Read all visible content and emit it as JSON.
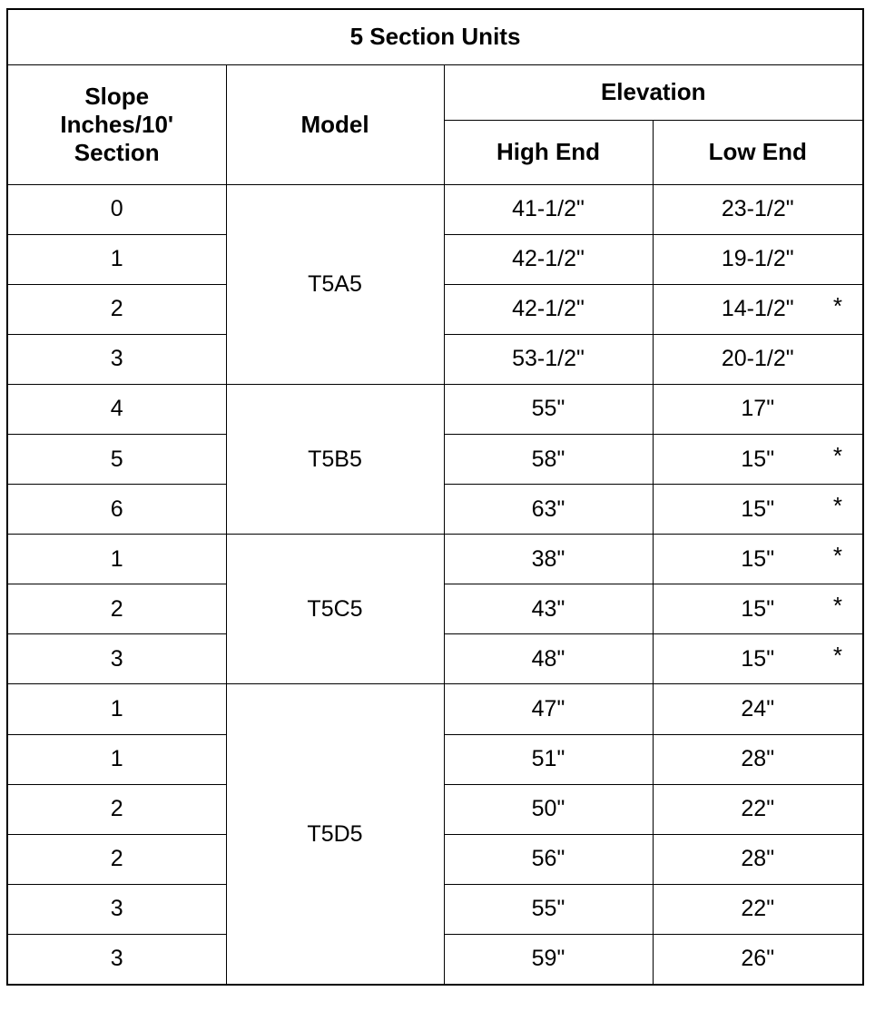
{
  "title": "5 Section Units",
  "headers": {
    "slope": "Slope Inches/10' Section",
    "slope_lines": [
      "Slope",
      "Inches/10'",
      "Section"
    ],
    "model": "Model",
    "elevation": "Elevation",
    "high_end": "High End",
    "low_end": "Low End"
  },
  "groups": [
    {
      "model": "T5A5",
      "rows": [
        {
          "slope": "0",
          "high": "41-1/2\"",
          "low": "23-1/2\"",
          "note": ""
        },
        {
          "slope": "1",
          "high": "42-1/2\"",
          "low": "19-1/2\"",
          "note": ""
        },
        {
          "slope": "2",
          "high": "42-1/2\"",
          "low": "14-1/2\"",
          "note": "*"
        },
        {
          "slope": "3",
          "high": "53-1/2\"",
          "low": "20-1/2\"",
          "note": ""
        }
      ]
    },
    {
      "model": "T5B5",
      "rows": [
        {
          "slope": "4",
          "high": "55\"",
          "low": "17\"",
          "note": ""
        },
        {
          "slope": "5",
          "high": "58\"",
          "low": "15\"",
          "note": "*"
        },
        {
          "slope": "6",
          "high": "63\"",
          "low": "15\"",
          "note": "*"
        }
      ]
    },
    {
      "model": "T5C5",
      "rows": [
        {
          "slope": "1",
          "high": "38\"",
          "low": "15\"",
          "note": "*"
        },
        {
          "slope": "2",
          "high": "43\"",
          "low": "15\"",
          "note": "*"
        },
        {
          "slope": "3",
          "high": "48\"",
          "low": "15\"",
          "note": "*"
        }
      ]
    },
    {
      "model": "T5D5",
      "rows": [
        {
          "slope": "1",
          "high": "47\"",
          "low": "24\"",
          "note": ""
        },
        {
          "slope": "1",
          "high": "51\"",
          "low": "28\"",
          "note": ""
        },
        {
          "slope": "2",
          "high": "50\"",
          "low": "22\"",
          "note": ""
        },
        {
          "slope": "2",
          "high": "56\"",
          "low": "28\"",
          "note": ""
        },
        {
          "slope": "3",
          "high": "55\"",
          "low": "22\"",
          "note": ""
        },
        {
          "slope": "3",
          "high": "59\"",
          "low": "26\"",
          "note": ""
        }
      ]
    }
  ]
}
